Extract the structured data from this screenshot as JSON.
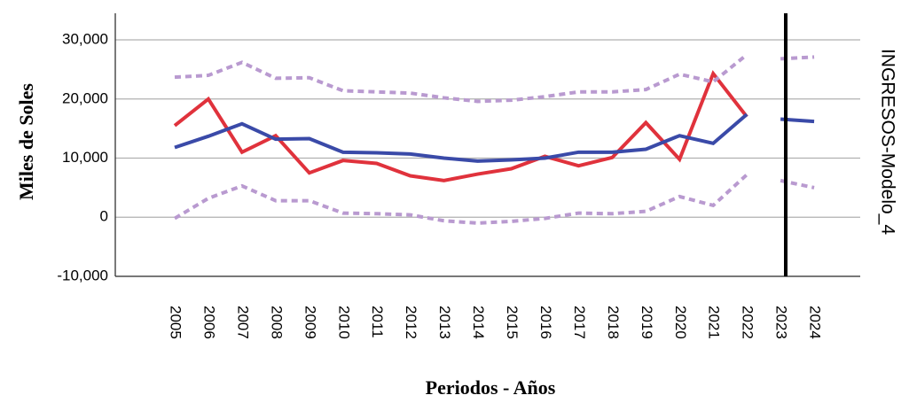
{
  "chart_data": {
    "type": "line",
    "y_label": "Miles de Soles",
    "x_label": "Periodos - Años",
    "right_label": "INGRESOS-Modelo_4",
    "categories": [
      "2005",
      "2006",
      "2007",
      "2008",
      "2009",
      "2010",
      "2011",
      "2012",
      "2013",
      "2014",
      "2015",
      "2016",
      "2017",
      "2018",
      "2019",
      "2020",
      "2021",
      "2022",
      "2023",
      "2024"
    ],
    "series": [
      {
        "color": "#e0323c",
        "dashed": false,
        "values": [
          15500,
          20000,
          11000,
          13800,
          7500,
          9600,
          9100,
          7000,
          6200,
          7300,
          8200,
          10300,
          8700,
          10100,
          16000,
          9800,
          24300,
          17000,
          null,
          null
        ]
      },
      {
        "color": "#3a4aa8",
        "dashed": false,
        "values": [
          11800,
          13700,
          15800,
          13200,
          13300,
          11000,
          10900,
          10700,
          10000,
          9500,
          9700,
          10000,
          11000,
          11000,
          11500,
          13800,
          12500,
          17400,
          null,
          null
        ]
      },
      {
        "color": "#3a4aa8",
        "dashed": false,
        "values": [
          null,
          null,
          null,
          null,
          null,
          null,
          null,
          null,
          null,
          null,
          null,
          null,
          null,
          null,
          null,
          null,
          null,
          null,
          16600,
          16200
        ]
      },
      {
        "color": "#b99ad0",
        "dashed": true,
        "values": [
          23700,
          24000,
          26200,
          23500,
          23600,
          21400,
          21200,
          21000,
          20200,
          19600,
          19800,
          20400,
          21200,
          21200,
          21600,
          24200,
          22900,
          27500,
          null,
          null
        ]
      },
      {
        "color": "#b99ad0",
        "dashed": true,
        "values": [
          null,
          null,
          null,
          null,
          null,
          null,
          null,
          null,
          null,
          null,
          null,
          null,
          null,
          null,
          null,
          null,
          null,
          null,
          26800,
          27100
        ]
      },
      {
        "color": "#b99ad0",
        "dashed": true,
        "values": [
          -200,
          3200,
          5300,
          2800,
          2800,
          700,
          600,
          400,
          -600,
          -1000,
          -700,
          -200,
          700,
          600,
          1000,
          3500,
          2000,
          7200,
          null,
          null
        ]
      },
      {
        "color": "#b99ad0",
        "dashed": true,
        "values": [
          null,
          null,
          null,
          null,
          null,
          null,
          null,
          null,
          null,
          null,
          null,
          null,
          null,
          null,
          null,
          null,
          null,
          null,
          6200,
          5000
        ]
      }
    ],
    "ylim": [
      -10000,
      34500
    ],
    "yticks": [
      {
        "value": -10000,
        "label": "-10,000"
      },
      0,
      {
        "value": 10000,
        "label": "10,000"
      },
      {
        "value": 20000,
        "label": "20,000"
      },
      {
        "value": 30000,
        "label": "30,000"
      }
    ],
    "grid": true
  }
}
